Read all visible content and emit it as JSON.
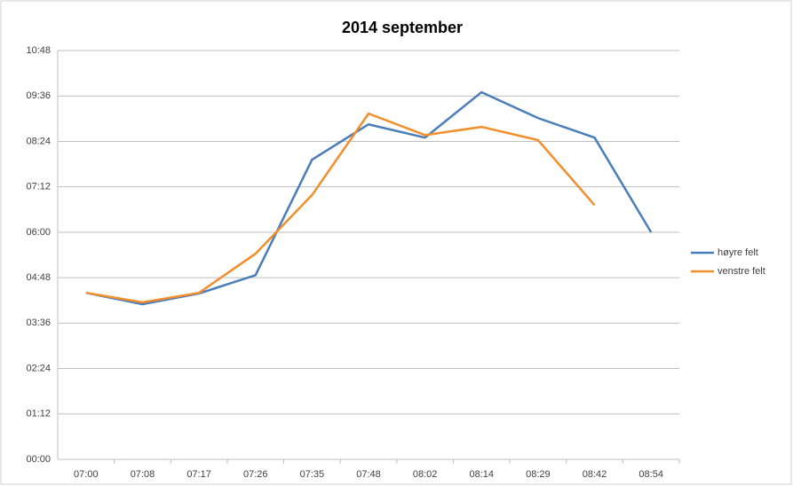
{
  "chart_data": {
    "type": "line",
    "title": "2014 september",
    "categories": [
      "07:00",
      "07:08",
      "07:17",
      "07:26",
      "07:35",
      "07:48",
      "08:02",
      "08:14",
      "08:29",
      "08:42",
      "08:54"
    ],
    "series": [
      {
        "name": "høyre felt",
        "color": "#4a7ebb",
        "values": [
          264,
          246,
          263,
          292,
          475,
          531,
          510,
          582,
          541,
          510,
          360
        ]
      },
      {
        "name": "venstre felt",
        "color": "#f28e2b",
        "values": [
          264,
          249,
          264,
          326,
          419,
          548,
          514,
          527,
          506,
          403,
          null
        ]
      }
    ],
    "ylim": [
      0,
      648
    ],
    "yticks": [
      {
        "value": 0,
        "label": "00:00"
      },
      {
        "value": 72,
        "label": "01:12"
      },
      {
        "value": 144,
        "label": "02:24"
      },
      {
        "value": 216,
        "label": "03:36"
      },
      {
        "value": 288,
        "label": "04:48"
      },
      {
        "value": 360,
        "label": "06:00"
      },
      {
        "value": 432,
        "label": "07:12"
      },
      {
        "value": 504,
        "label": "08:24"
      },
      {
        "value": 576,
        "label": "09:36"
      },
      {
        "value": 648,
        "label": "10:48"
      }
    ],
    "grid": true
  }
}
